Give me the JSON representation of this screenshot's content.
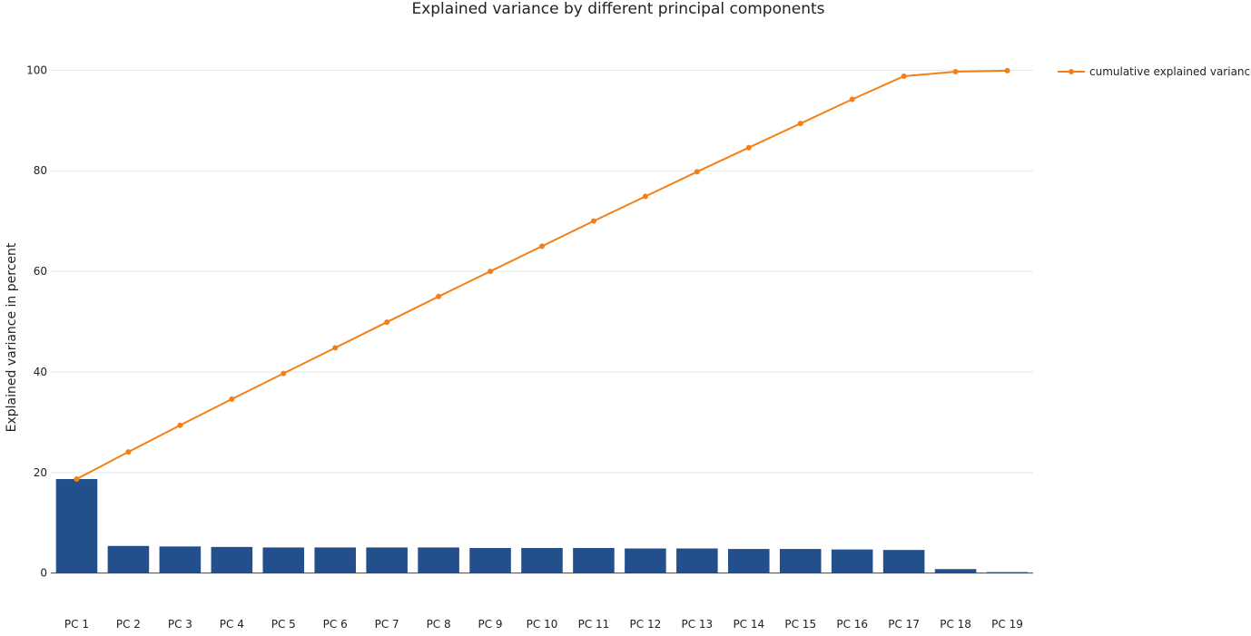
{
  "chart_data": {
    "type": "bar",
    "title": "Explained variance by different principal components",
    "xlabel": "",
    "ylabel": "Explained variance in percent",
    "ylim": [
      -1.5,
      108
    ],
    "y_ticks": [
      0,
      20,
      40,
      60,
      80,
      100
    ],
    "grid": true,
    "legend_position": "top-right",
    "categories": [
      "PC 1",
      "PC 2",
      "PC 3",
      "PC 4",
      "PC 5",
      "PC 6",
      "PC 7",
      "PC 8",
      "PC 9",
      "PC 10",
      "PC 11",
      "PC 12",
      "PC 13",
      "PC 14",
      "PC 15",
      "PC 16",
      "PC 17",
      "PC 18",
      "PC 19"
    ],
    "series": [
      {
        "type": "bar",
        "color": "#23508c",
        "values": [
          18.7,
          5.4,
          5.3,
          5.2,
          5.1,
          5.1,
          5.1,
          5.1,
          5.0,
          5.0,
          5.0,
          4.9,
          4.9,
          4.8,
          4.8,
          4.7,
          4.6,
          0.8,
          0.2
        ]
      },
      {
        "type": "line",
        "name": "cumulative explained variance",
        "color": "#f57f17",
        "values": [
          18.7,
          24.1,
          29.4,
          34.6,
          39.7,
          44.8,
          49.9,
          55.0,
          60.0,
          65.0,
          70.0,
          74.9,
          79.8,
          84.6,
          89.4,
          94.2,
          98.8,
          99.7,
          99.9
        ]
      }
    ]
  }
}
